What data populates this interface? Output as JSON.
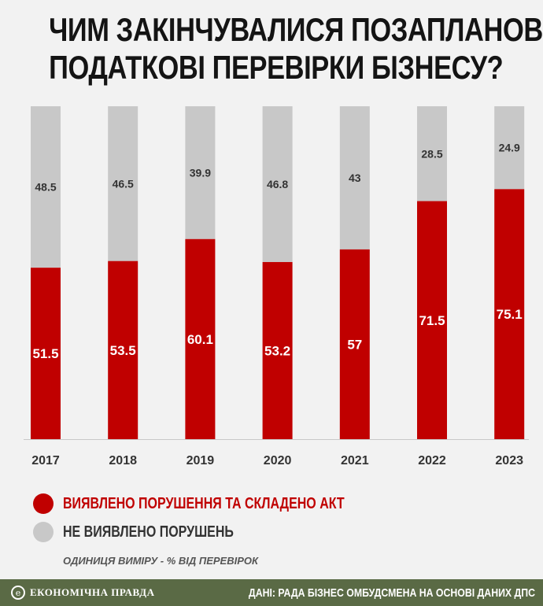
{
  "header": {
    "title_line1": "ЧИМ ЗАКІНЧУВАЛИСЯ ПОЗАПЛАНОВІ",
    "title_line2": "ПОДАТКОВІ ПЕРЕВІРКИ БІЗНЕСУ?"
  },
  "colors": {
    "violation": "#c00000",
    "no_violation": "#c8c8c8",
    "background": "#f2f2f2",
    "footer": "#5a6a45"
  },
  "legend": {
    "violation_label": "ВИЯВЛЕНО ПОРУШЕННЯ ТА СКЛАДЕНО АКТ",
    "no_violation_label": "НЕ ВИЯВЛЕНО ПОРУШЕНЬ",
    "unit_note": "ОДИНИЦЯ ВИМІРУ - % ВІД ПЕРЕВІРОК"
  },
  "footer": {
    "brand": "ЕКОНОМІЧНА ПРАВДА",
    "brand_icon_glyph": "e",
    "source": "ДАНІ: РАДА БІЗНЕС ОМБУДСМЕНА НА ОСНОВІ ДАНИХ ДПС"
  },
  "chart_data": {
    "type": "bar",
    "stacked": true,
    "categories": [
      "2017",
      "2018",
      "2019",
      "2020",
      "2021",
      "2022",
      "2023"
    ],
    "series": [
      {
        "name": "ВИЯВЛЕНО ПОРУШЕННЯ ТА СКЛАДЕНО АКТ",
        "values": [
          51.5,
          53.5,
          60.1,
          53.2,
          57,
          71.5,
          75.1
        ],
        "color": "#c00000"
      },
      {
        "name": "НЕ ВИЯВЛЕНО ПОРУШЕНЬ",
        "values": [
          48.5,
          46.5,
          39.9,
          46.8,
          43,
          28.5,
          24.9
        ],
        "color": "#c8c8c8"
      }
    ],
    "ylim": [
      0,
      100
    ],
    "grid": false,
    "legend_position": "bottom-left"
  }
}
